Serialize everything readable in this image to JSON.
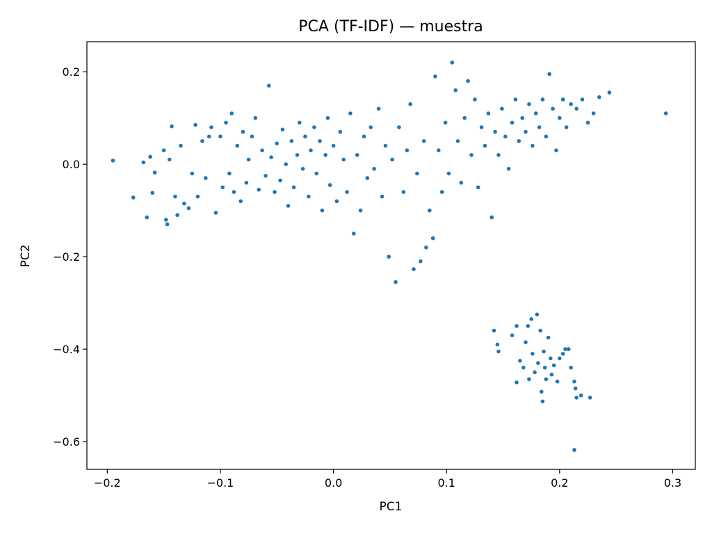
{
  "chart_data": {
    "type": "scatter",
    "title": "PCA (TF-IDF) — muestra",
    "xlabel": "PC1",
    "ylabel": "PC2",
    "xlim": [
      -0.218,
      0.32
    ],
    "ylim": [
      -0.66,
      0.265
    ],
    "xticks": [
      -0.2,
      -0.1,
      0.0,
      0.1,
      0.2,
      0.3
    ],
    "xtick_labels": [
      "−0.2",
      "−0.1",
      "0.0",
      "0.1",
      "0.2",
      "0.3"
    ],
    "yticks": [
      0.2,
      0.0,
      -0.2,
      -0.4,
      -0.6
    ],
    "ytick_labels": [
      "0.2",
      "0.0",
      "−0.2",
      "−0.4",
      "−0.6"
    ],
    "grid": false,
    "marker_color": "#1f77b4",
    "series": [
      {
        "points": [
          [
            -0.195,
            0.008
          ],
          [
            -0.177,
            -0.072
          ],
          [
            -0.168,
            0.004
          ],
          [
            -0.165,
            -0.115
          ],
          [
            -0.162,
            0.016
          ],
          [
            -0.16,
            -0.062
          ],
          [
            -0.158,
            -0.018
          ],
          [
            -0.15,
            0.03
          ],
          [
            -0.148,
            -0.12
          ],
          [
            -0.147,
            -0.13
          ],
          [
            -0.145,
            0.01
          ],
          [
            -0.143,
            0.082
          ],
          [
            -0.14,
            -0.07
          ],
          [
            -0.138,
            -0.11
          ],
          [
            -0.135,
            0.04
          ],
          [
            -0.132,
            -0.085
          ],
          [
            -0.128,
            -0.095
          ],
          [
            -0.125,
            -0.02
          ],
          [
            -0.122,
            0.085
          ],
          [
            -0.12,
            -0.07
          ],
          [
            -0.116,
            0.05
          ],
          [
            -0.113,
            -0.03
          ],
          [
            -0.11,
            0.06
          ],
          [
            -0.108,
            0.08
          ],
          [
            -0.104,
            -0.105
          ],
          [
            -0.1,
            0.06
          ],
          [
            -0.098,
            -0.05
          ],
          [
            -0.095,
            0.09
          ],
          [
            -0.092,
            -0.02
          ],
          [
            -0.09,
            0.11
          ],
          [
            -0.088,
            -0.06
          ],
          [
            -0.085,
            0.04
          ],
          [
            -0.082,
            -0.08
          ],
          [
            -0.08,
            0.07
          ],
          [
            -0.077,
            -0.04
          ],
          [
            -0.075,
            0.01
          ],
          [
            -0.072,
            0.06
          ],
          [
            -0.069,
            0.1
          ],
          [
            -0.066,
            -0.055
          ],
          [
            -0.063,
            0.03
          ],
          [
            -0.06,
            -0.025
          ],
          [
            -0.057,
            0.17
          ],
          [
            -0.055,
            0.015
          ],
          [
            -0.052,
            -0.06
          ],
          [
            -0.05,
            0.045
          ],
          [
            -0.047,
            -0.035
          ],
          [
            -0.045,
            0.075
          ],
          [
            -0.042,
            0.0
          ],
          [
            -0.04,
            -0.09
          ],
          [
            -0.037,
            0.05
          ],
          [
            -0.035,
            -0.05
          ],
          [
            -0.032,
            0.02
          ],
          [
            -0.03,
            0.09
          ],
          [
            -0.027,
            -0.01
          ],
          [
            -0.025,
            0.06
          ],
          [
            -0.022,
            -0.07
          ],
          [
            -0.02,
            0.03
          ],
          [
            -0.017,
            0.08
          ],
          [
            -0.015,
            -0.02
          ],
          [
            -0.012,
            0.05
          ],
          [
            -0.01,
            -0.1
          ],
          [
            -0.007,
            0.02
          ],
          [
            -0.005,
            0.1
          ],
          [
            -0.003,
            -0.045
          ],
          [
            0.0,
            0.04
          ],
          [
            0.003,
            -0.08
          ],
          [
            0.006,
            0.07
          ],
          [
            0.009,
            0.01
          ],
          [
            0.012,
            -0.06
          ],
          [
            0.015,
            0.11
          ],
          [
            0.018,
            -0.15
          ],
          [
            0.021,
            0.02
          ],
          [
            0.024,
            -0.1
          ],
          [
            0.027,
            0.06
          ],
          [
            0.03,
            -0.03
          ],
          [
            0.033,
            0.08
          ],
          [
            0.036,
            -0.01
          ],
          [
            0.04,
            0.12
          ],
          [
            0.043,
            -0.07
          ],
          [
            0.046,
            0.04
          ],
          [
            0.049,
            -0.2
          ],
          [
            0.052,
            0.01
          ],
          [
            0.055,
            -0.255
          ],
          [
            0.058,
            0.08
          ],
          [
            0.062,
            -0.06
          ],
          [
            0.065,
            0.03
          ],
          [
            0.068,
            0.13
          ],
          [
            0.071,
            -0.227
          ],
          [
            0.074,
            -0.02
          ],
          [
            0.077,
            -0.21
          ],
          [
            0.08,
            0.05
          ],
          [
            0.082,
            -0.18
          ],
          [
            0.085,
            -0.1
          ],
          [
            0.088,
            -0.16
          ],
          [
            0.09,
            0.19
          ],
          [
            0.093,
            0.03
          ],
          [
            0.096,
            -0.06
          ],
          [
            0.099,
            0.09
          ],
          [
            0.102,
            -0.02
          ],
          [
            0.105,
            0.22
          ],
          [
            0.108,
            0.16
          ],
          [
            0.11,
            0.05
          ],
          [
            0.113,
            -0.04
          ],
          [
            0.116,
            0.1
          ],
          [
            0.119,
            0.18
          ],
          [
            0.122,
            0.02
          ],
          [
            0.125,
            0.14
          ],
          [
            0.128,
            -0.05
          ],
          [
            0.131,
            0.08
          ],
          [
            0.134,
            0.04
          ],
          [
            0.137,
            0.11
          ],
          [
            0.14,
            -0.115
          ],
          [
            0.143,
            0.07
          ],
          [
            0.146,
            0.02
          ],
          [
            0.149,
            0.12
          ],
          [
            0.152,
            0.06
          ],
          [
            0.155,
            -0.01
          ],
          [
            0.158,
            0.09
          ],
          [
            0.161,
            0.14
          ],
          [
            0.164,
            0.05
          ],
          [
            0.167,
            0.1
          ],
          [
            0.17,
            0.07
          ],
          [
            0.173,
            0.13
          ],
          [
            0.176,
            0.04
          ],
          [
            0.179,
            0.11
          ],
          [
            0.182,
            0.08
          ],
          [
            0.185,
            0.14
          ],
          [
            0.188,
            0.06
          ],
          [
            0.191,
            0.195
          ],
          [
            0.194,
            0.12
          ],
          [
            0.197,
            0.03
          ],
          [
            0.2,
            0.1
          ],
          [
            0.203,
            0.14
          ],
          [
            0.206,
            0.08
          ],
          [
            0.21,
            0.13
          ],
          [
            0.215,
            0.12
          ],
          [
            0.22,
            0.14
          ],
          [
            0.225,
            0.09
          ],
          [
            0.23,
            0.11
          ],
          [
            0.235,
            0.145
          ],
          [
            0.244,
            0.155
          ],
          [
            0.294,
            0.11
          ],
          [
            0.142,
            -0.36
          ],
          [
            0.145,
            -0.39
          ],
          [
            0.146,
            -0.405
          ],
          [
            0.158,
            -0.37
          ],
          [
            0.162,
            -0.35
          ],
          [
            0.162,
            -0.472
          ],
          [
            0.165,
            -0.425
          ],
          [
            0.168,
            -0.44
          ],
          [
            0.17,
            -0.385
          ],
          [
            0.172,
            -0.35
          ],
          [
            0.173,
            -0.465
          ],
          [
            0.175,
            -0.335
          ],
          [
            0.176,
            -0.41
          ],
          [
            0.178,
            -0.45
          ],
          [
            0.18,
            -0.325
          ],
          [
            0.181,
            -0.43
          ],
          [
            0.183,
            -0.36
          ],
          [
            0.184,
            -0.492
          ],
          [
            0.185,
            -0.513
          ],
          [
            0.186,
            -0.405
          ],
          [
            0.187,
            -0.44
          ],
          [
            0.188,
            -0.465
          ],
          [
            0.19,
            -0.375
          ],
          [
            0.192,
            -0.42
          ],
          [
            0.193,
            -0.455
          ],
          [
            0.195,
            -0.435
          ],
          [
            0.198,
            -0.47
          ],
          [
            0.2,
            -0.42
          ],
          [
            0.203,
            -0.41
          ],
          [
            0.205,
            -0.4
          ],
          [
            0.208,
            -0.4
          ],
          [
            0.21,
            -0.44
          ],
          [
            0.213,
            -0.47
          ],
          [
            0.214,
            -0.485
          ],
          [
            0.215,
            -0.505
          ],
          [
            0.219,
            -0.5
          ],
          [
            0.227,
            -0.505
          ],
          [
            0.213,
            -0.618
          ]
        ]
      }
    ]
  }
}
